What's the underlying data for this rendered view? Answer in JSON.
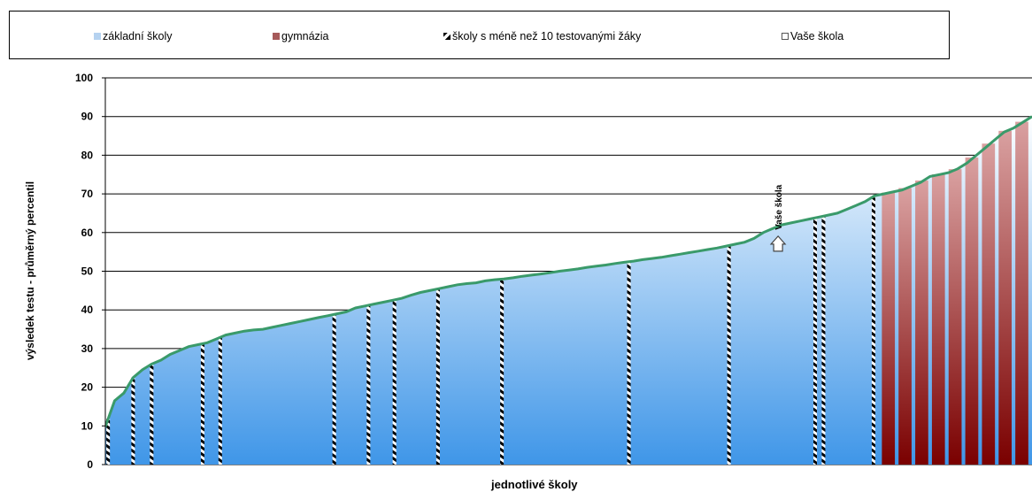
{
  "legend": {
    "primary": "základní školy",
    "gymnasium": "gymnázia",
    "small": "školy s méně než 10 testovanými žáky",
    "yours": "Vaše škola"
  },
  "marker_label": "Vaše škola",
  "colors": {
    "primary_top": "#ffffff",
    "primary_bottom": "#3f96e8",
    "gymnasium_top": "#d9a0a0",
    "gymnasium_bottom": "#7a0000",
    "line": "#3a9a6a",
    "grid": "#000000"
  },
  "chart_data": {
    "type": "area",
    "title": "",
    "xlabel": "jednotlivé školy",
    "ylabel": "výsledek testu - průměrný percentil",
    "ylim": [
      0,
      100
    ],
    "yticks": [
      0,
      10,
      20,
      30,
      40,
      50,
      60,
      70,
      80,
      90,
      100
    ],
    "grid": true,
    "legend_position": "top",
    "x_range": [
      0,
      100
    ],
    "curve": [
      [
        0,
        9.8
      ],
      [
        1,
        16.5
      ],
      [
        2,
        18.5
      ],
      [
        3,
        22.5
      ],
      [
        4,
        24.5
      ],
      [
        5,
        26
      ],
      [
        6,
        27
      ],
      [
        7,
        28.5
      ],
      [
        8,
        29.5
      ],
      [
        9,
        30.5
      ],
      [
        10,
        31
      ],
      [
        11,
        31.5
      ],
      [
        12,
        32.5
      ],
      [
        13,
        33.5
      ],
      [
        14,
        34
      ],
      [
        15,
        34.5
      ],
      [
        16,
        34.8
      ],
      [
        17,
        35
      ],
      [
        18,
        35.5
      ],
      [
        19,
        36
      ],
      [
        20,
        36.5
      ],
      [
        21,
        37
      ],
      [
        22,
        37.5
      ],
      [
        23,
        38
      ],
      [
        24,
        38.5
      ],
      [
        25,
        39
      ],
      [
        26,
        39.5
      ],
      [
        27,
        40.5
      ],
      [
        28,
        41
      ],
      [
        29,
        41.5
      ],
      [
        30,
        42
      ],
      [
        31,
        42.5
      ],
      [
        32,
        43
      ],
      [
        33,
        43.8
      ],
      [
        34,
        44.5
      ],
      [
        35,
        45
      ],
      [
        36,
        45.5
      ],
      [
        37,
        46
      ],
      [
        38,
        46.5
      ],
      [
        39,
        46.8
      ],
      [
        40,
        47
      ],
      [
        41,
        47.5
      ],
      [
        42,
        47.8
      ],
      [
        43,
        48
      ],
      [
        44,
        48.3
      ],
      [
        45,
        48.7
      ],
      [
        46,
        49
      ],
      [
        47,
        49.3
      ],
      [
        48,
        49.6
      ],
      [
        49,
        50
      ],
      [
        50,
        50.3
      ],
      [
        51,
        50.6
      ],
      [
        52,
        51
      ],
      [
        53,
        51.3
      ],
      [
        54,
        51.6
      ],
      [
        55,
        52
      ],
      [
        56,
        52.3
      ],
      [
        57,
        52.6
      ],
      [
        58,
        53
      ],
      [
        59,
        53.3
      ],
      [
        60,
        53.6
      ],
      [
        61,
        54
      ],
      [
        62,
        54.4
      ],
      [
        63,
        54.8
      ],
      [
        64,
        55.2
      ],
      [
        65,
        55.6
      ],
      [
        66,
        56
      ],
      [
        67,
        56.5
      ],
      [
        68,
        57
      ],
      [
        69,
        57.5
      ],
      [
        70,
        58.5
      ],
      [
        71,
        60
      ],
      [
        72,
        61
      ],
      [
        73,
        62
      ],
      [
        74,
        62.5
      ],
      [
        75,
        63
      ],
      [
        76,
        63.5
      ],
      [
        77,
        64
      ],
      [
        78,
        64.5
      ],
      [
        79,
        65
      ],
      [
        80,
        66
      ],
      [
        81,
        67
      ],
      [
        82,
        68
      ],
      [
        83,
        69.5
      ],
      [
        84,
        70
      ],
      [
        85,
        70.5
      ],
      [
        86,
        71
      ],
      [
        87,
        72
      ],
      [
        88,
        73
      ],
      [
        89,
        74.5
      ],
      [
        90,
        75
      ],
      [
        91,
        75.5
      ],
      [
        92,
        76.5
      ],
      [
        93,
        78
      ],
      [
        94,
        80
      ],
      [
        95,
        82
      ],
      [
        96,
        84
      ],
      [
        97,
        86
      ],
      [
        98,
        87
      ],
      [
        99,
        88.5
      ],
      [
        100,
        90
      ]
    ],
    "small_school_markers": [
      0.3,
      3.0,
      5.0,
      10.5,
      12.4,
      24.7,
      28.4,
      31.2,
      35.9,
      42.8,
      56.5,
      67.3,
      76.6,
      77.5,
      82.9
    ],
    "gymnasium_range": [
      83.8,
      100
    ],
    "your_school": {
      "x": 72.6,
      "y": 57.0
    }
  }
}
